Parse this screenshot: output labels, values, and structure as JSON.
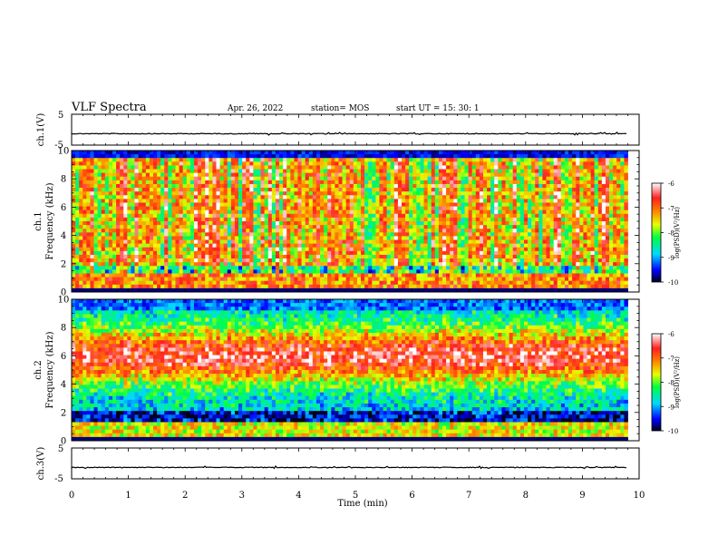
{
  "header": {
    "title": "VLF Spectra",
    "date": "Apr. 26, 2022",
    "station": "station= MOS",
    "start": "start  UT =   15: 30: 1"
  },
  "chart_data": [
    {
      "type": "line",
      "panel": "waveform",
      "ylabel": "ch.1(V)",
      "ytick_labels": [
        "5",
        "-5"
      ],
      "ylim": [
        -5,
        5
      ],
      "xlim": [
        0,
        10
      ],
      "description_values": "flat trace near -1.3 V with small spikes",
      "series": [
        {
          "x": [
            0,
            9.8
          ],
          "y": [
            -1.3,
            -1.3
          ]
        }
      ]
    },
    {
      "type": "heatmap",
      "panel": "spectrogram",
      "ylabel": "ch.1\nFrequency  (kHz)",
      "ylim": [
        0,
        10
      ],
      "yticks": [
        0,
        2,
        4,
        6,
        8,
        10
      ],
      "xlim": [
        0,
        10
      ],
      "x_extent": [
        0,
        9.8
      ],
      "colorbar": {
        "label": "log(PSD)(V²/Hz)",
        "range": [
          -10,
          -6
        ],
        "tick_labels": [
          "-6",
          "-7",
          "-8",
          "-9",
          "-10"
        ]
      }
    },
    {
      "type": "heatmap",
      "panel": "spectrogram",
      "ylabel": "ch.2\nFrequency  (kHz)",
      "ylim": [
        0,
        10
      ],
      "yticks": [
        0,
        2,
        4,
        6,
        8,
        10
      ],
      "xlim": [
        0,
        10
      ],
      "x_extent": [
        0,
        9.8
      ],
      "colorbar": {
        "label": "log(PSD)(V²/Hz)",
        "range": [
          -10,
          -6
        ],
        "tick_labels": [
          "-6",
          "-7",
          "-8",
          "-9",
          "-10"
        ]
      }
    },
    {
      "type": "line",
      "panel": "waveform",
      "ylabel": "ch.3(V)",
      "ytick_labels": [
        "5",
        "-5"
      ],
      "ylim": [
        -5,
        5
      ],
      "xlim": [
        0,
        10
      ],
      "series": [
        {
          "x": [
            0,
            9.8
          ],
          "y": [
            -1.3,
            -1.3
          ]
        }
      ]
    }
  ],
  "x_axis": {
    "label": "Time  (min)",
    "ticks": [
      "0",
      "1",
      "2",
      "3",
      "4",
      "5",
      "6",
      "7",
      "8",
      "9",
      "10"
    ]
  }
}
